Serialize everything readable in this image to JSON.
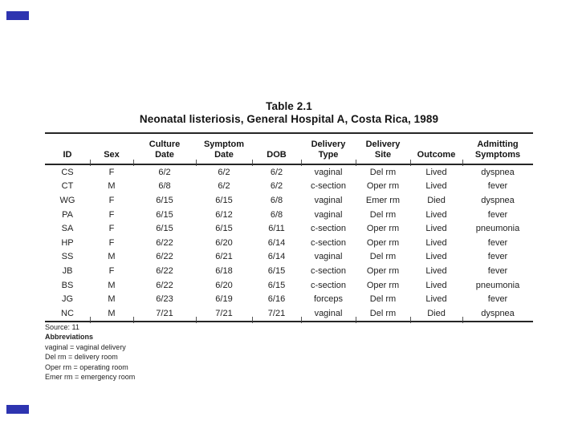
{
  "title": "Table 2.1",
  "subtitle": "Neonatal listeriosis, General Hospital A, Costa Rica, 1989",
  "table": {
    "columns": [
      {
        "top": "",
        "bottom": "ID"
      },
      {
        "top": "",
        "bottom": "Sex"
      },
      {
        "top": "Culture",
        "bottom": "Date"
      },
      {
        "top": "Symptom",
        "bottom": "Date"
      },
      {
        "top": "",
        "bottom": "DOB"
      },
      {
        "top": "Delivery",
        "bottom": "Type"
      },
      {
        "top": "Delivery",
        "bottom": "Site"
      },
      {
        "top": "",
        "bottom": "Outcome"
      },
      {
        "top": "Admitting",
        "bottom": "Symptoms"
      }
    ],
    "rows": [
      [
        "CS",
        "F",
        "6/2",
        "6/2",
        "6/2",
        "vaginal",
        "Del rm",
        "Lived",
        "dyspnea"
      ],
      [
        "CT",
        "M",
        "6/8",
        "6/2",
        "6/2",
        "c-section",
        "Oper rm",
        "Lived",
        "fever"
      ],
      [
        "WG",
        "F",
        "6/15",
        "6/15",
        "6/8",
        "vaginal",
        "Emer rm",
        "Died",
        "dyspnea"
      ],
      [
        "PA",
        "F",
        "6/15",
        "6/12",
        "6/8",
        "vaginal",
        "Del rm",
        "Lived",
        "fever"
      ],
      [
        "SA",
        "F",
        "6/15",
        "6/15",
        "6/11",
        "c-section",
        "Oper rm",
        "Lived",
        "pneumonia"
      ],
      [
        "HP",
        "F",
        "6/22",
        "6/20",
        "6/14",
        "c-section",
        "Oper rm",
        "Lived",
        "fever"
      ],
      [
        "SS",
        "M",
        "6/22",
        "6/21",
        "6/14",
        "vaginal",
        "Del rm",
        "Lived",
        "fever"
      ],
      [
        "JB",
        "F",
        "6/22",
        "6/18",
        "6/15",
        "c-section",
        "Oper rm",
        "Lived",
        "fever"
      ],
      [
        "BS",
        "M",
        "6/22",
        "6/20",
        "6/15",
        "c-section",
        "Oper rm",
        "Lived",
        "pneumonia"
      ],
      [
        "JG",
        "M",
        "6/23",
        "6/19",
        "6/16",
        "forceps",
        "Del rm",
        "Lived",
        "fever"
      ],
      [
        "NC",
        "M",
        "7/21",
        "7/21",
        "7/21",
        "vaginal",
        "Del rm",
        "Died",
        "dyspnea"
      ]
    ]
  },
  "footer": {
    "source": "Source: 11",
    "abbrev_heading": "Abbreviations",
    "abbrevs": [
      "vaginal = vaginal delivery",
      "Del rm = delivery room",
      "Oper rm = operating room",
      "Emer rm = emergency room"
    ]
  },
  "colors": {
    "rule": "#262626",
    "text": "#1f1f1f",
    "corner_mark": "#2e34b0"
  }
}
